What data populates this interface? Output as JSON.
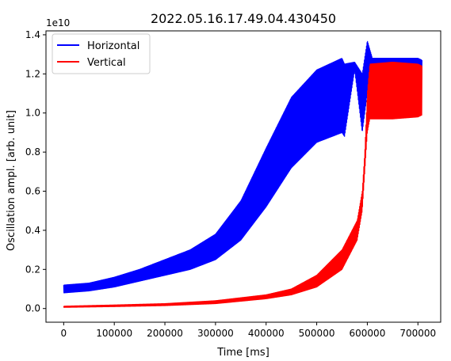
{
  "chart_data": {
    "type": "line",
    "title": "2022.05.16.17.49.04.430450",
    "xlabel": "Time [ms]",
    "ylabel": "Oscillation ampl. [arb. unit]",
    "y_multiplier": "1e10",
    "xlim": [
      -35000,
      745000
    ],
    "ylim": [
      -0.07,
      1.42
    ],
    "x_ticks": [
      0,
      100000,
      200000,
      300000,
      400000,
      500000,
      600000,
      700000
    ],
    "x_tick_labels": [
      "0",
      "100000",
      "200000",
      "300000",
      "400000",
      "500000",
      "600000",
      "700000"
    ],
    "y_ticks": [
      0.0,
      0.2,
      0.4,
      0.6,
      0.8,
      1.0,
      1.2,
      1.4
    ],
    "y_tick_labels": [
      "0.0",
      "0.2",
      "0.4",
      "0.6",
      "0.8",
      "1.0",
      "1.2",
      "1.4"
    ],
    "grid": false,
    "legend_position": "upper-left",
    "series": [
      {
        "name": "Horizontal",
        "color": "#0000ff",
        "x": [
          0,
          50000,
          100000,
          150000,
          200000,
          250000,
          300000,
          350000,
          400000,
          450000,
          500000,
          550000,
          555000,
          575000,
          590000,
          600000,
          610000,
          650000,
          700000,
          708000
        ],
        "upper": [
          0.12,
          0.13,
          0.16,
          0.2,
          0.25,
          0.3,
          0.38,
          0.55,
          0.82,
          1.08,
          1.22,
          1.28,
          1.25,
          1.26,
          1.2,
          1.37,
          1.28,
          1.28,
          1.28,
          1.27
        ],
        "lower": [
          0.08,
          0.09,
          0.11,
          0.14,
          0.17,
          0.2,
          0.25,
          0.35,
          0.52,
          0.72,
          0.85,
          0.9,
          0.88,
          1.22,
          0.9,
          1.1,
          1.17,
          1.17,
          1.17,
          1.17
        ]
      },
      {
        "name": "Vertical",
        "color": "#ff0000",
        "x": [
          0,
          100000,
          200000,
          300000,
          400000,
          450000,
          500000,
          550000,
          580000,
          590000,
          595000,
          600000,
          605000,
          650000,
          700000,
          708000
        ],
        "upper": [
          0.012,
          0.018,
          0.025,
          0.04,
          0.07,
          0.1,
          0.17,
          0.3,
          0.45,
          0.6,
          0.8,
          1.1,
          1.25,
          1.26,
          1.25,
          1.24
        ],
        "lower": [
          0.006,
          0.01,
          0.015,
          0.025,
          0.05,
          0.07,
          0.11,
          0.2,
          0.35,
          0.5,
          0.7,
          0.9,
          0.97,
          0.97,
          0.98,
          0.99
        ]
      }
    ]
  }
}
